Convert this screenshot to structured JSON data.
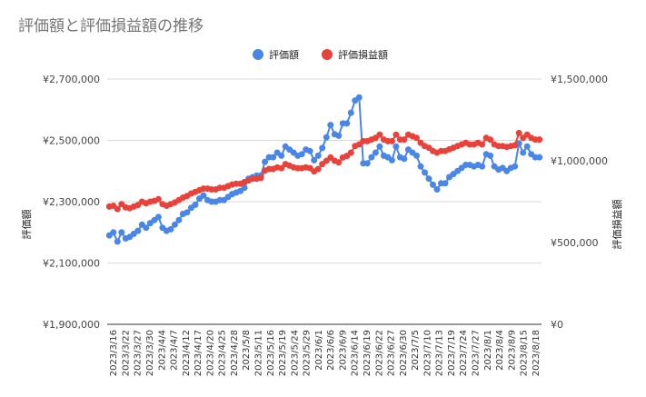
{
  "chart_data": {
    "type": "line",
    "title": "評価額と評価損益額の推移",
    "legend_position": "top",
    "grid": true,
    "x_tick_labels": [
      "2023/3/16",
      "2023/3/22",
      "2023/3/27",
      "2023/3/30",
      "2023/4/4",
      "2023/4/7",
      "2023/4/12",
      "2023/4/17",
      "2023/4/20",
      "2023/4/25",
      "2023/4/28",
      "2023/5/8",
      "2023/5/11",
      "2023/5/16",
      "2023/5/19",
      "2023/5/24",
      "2023/5/29",
      "2023/6/1",
      "2023/6/6",
      "2023/6/9",
      "2023/6/14",
      "2023/6/19",
      "2023/6/22",
      "2023/6/27",
      "2023/6/30",
      "2023/7/5",
      "2023/7/10",
      "2023/7/13",
      "2023/7/19",
      "2023/7/24",
      "2023/7/27",
      "2023/8/1",
      "2023/8/4",
      "2023/8/9",
      "2023/8/15",
      "2023/8/18"
    ],
    "y_left": {
      "label": "評価額",
      "range": [
        1900000,
        2700000
      ],
      "tick_values": [
        1900000,
        2100000,
        2300000,
        2500000,
        2700000
      ],
      "tick_labels": [
        "¥1,900,000",
        "¥2,100,000",
        "¥2,300,000",
        "¥2,500,000",
        "¥2,700,000"
      ]
    },
    "y_right": {
      "label": "評価損益額",
      "range": [
        0,
        1500000
      ],
      "tick_values": [
        0,
        500000,
        1000000,
        1500000
      ],
      "tick_labels": [
        "¥0",
        "¥500,000",
        "¥1,000,000",
        "¥1,500,000"
      ]
    },
    "series": [
      {
        "name": "評価額",
        "axis": "left",
        "color": "#4a86e8",
        "values": [
          2190000,
          2200000,
          2170000,
          2200000,
          2180000,
          2185000,
          2195000,
          2205000,
          2225000,
          2215000,
          2230000,
          2240000,
          2250000,
          2215000,
          2205000,
          2210000,
          2225000,
          2240000,
          2260000,
          2265000,
          2280000,
          2290000,
          2310000,
          2320000,
          2305000,
          2300000,
          2300000,
          2305000,
          2305000,
          2315000,
          2325000,
          2330000,
          2335000,
          2345000,
          2375000,
          2380000,
          2385000,
          2385000,
          2430000,
          2445000,
          2445000,
          2460000,
          2450000,
          2480000,
          2470000,
          2460000,
          2450000,
          2455000,
          2470000,
          2465000,
          2435000,
          2450000,
          2475000,
          2510000,
          2550000,
          2520000,
          2515000,
          2555000,
          2555000,
          2590000,
          2630000,
          2640000,
          2425000,
          2425000,
          2445000,
          2460000,
          2480000,
          2450000,
          2445000,
          2435000,
          2480000,
          2445000,
          2440000,
          2470000,
          2460000,
          2450000,
          2415000,
          2395000,
          2375000,
          2355000,
          2340000,
          2360000,
          2360000,
          2380000,
          2390000,
          2400000,
          2410000,
          2420000,
          2420000,
          2415000,
          2420000,
          2415000,
          2455000,
          2450000,
          2415000,
          2405000,
          2410000,
          2400000,
          2410000,
          2415000,
          2490000,
          2460000,
          2480000,
          2455000,
          2445000,
          2445000
        ]
      },
      {
        "name": "評価損益額",
        "axis": "right",
        "color": "#e8423a",
        "values": [
          720000,
          725000,
          705000,
          735000,
          715000,
          710000,
          720000,
          730000,
          750000,
          740000,
          750000,
          755000,
          765000,
          735000,
          725000,
          735000,
          745000,
          760000,
          775000,
          785000,
          800000,
          810000,
          820000,
          830000,
          830000,
          825000,
          825000,
          835000,
          835000,
          845000,
          855000,
          860000,
          860000,
          870000,
          880000,
          890000,
          890000,
          895000,
          940000,
          950000,
          950000,
          960000,
          955000,
          980000,
          970000,
          960000,
          955000,
          955000,
          960000,
          955000,
          935000,
          950000,
          980000,
          1000000,
          1020000,
          1000000,
          990000,
          1020000,
          1030000,
          1050000,
          1090000,
          1100000,
          1120000,
          1120000,
          1130000,
          1140000,
          1160000,
          1130000,
          1120000,
          1120000,
          1160000,
          1130000,
          1130000,
          1160000,
          1150000,
          1140000,
          1110000,
          1090000,
          1080000,
          1060000,
          1050000,
          1060000,
          1060000,
          1070000,
          1080000,
          1090000,
          1100000,
          1110000,
          1100000,
          1100000,
          1110000,
          1100000,
          1140000,
          1130000,
          1100000,
          1090000,
          1090000,
          1085000,
          1090000,
          1095000,
          1170000,
          1140000,
          1160000,
          1140000,
          1130000,
          1130000
        ]
      }
    ]
  }
}
